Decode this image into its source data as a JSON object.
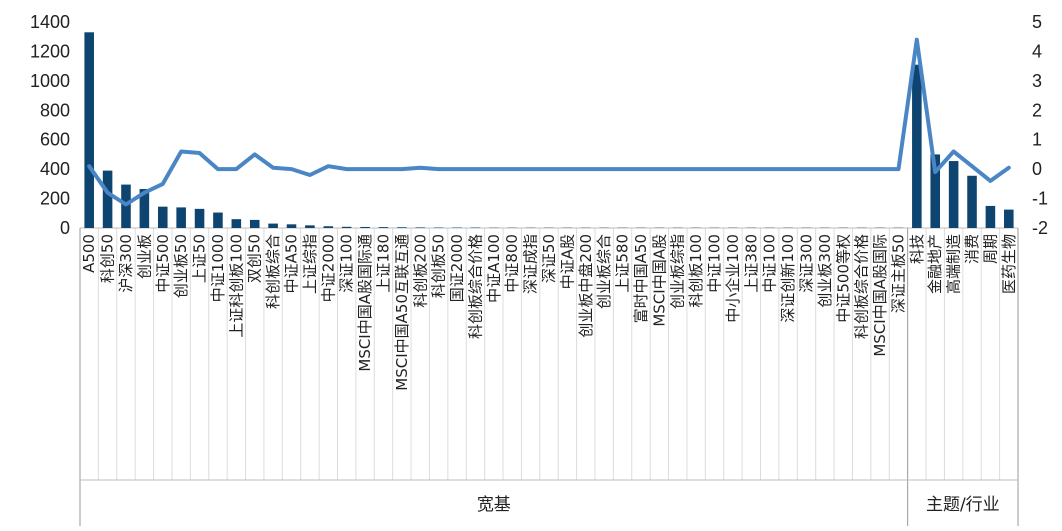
{
  "chart_data": {
    "type": "bar+line",
    "title": "",
    "categories": [
      "A500",
      "科创50",
      "沪深300",
      "创业板",
      "中证500",
      "创业板50",
      "上证50",
      "中证1000",
      "上证科创板100",
      "双创50",
      "科创板综合",
      "中证A50",
      "上证综指",
      "中证2000",
      "深证100",
      "MSCI中国A股国际通",
      "上证180",
      "MSCI中国A50互联互通",
      "科创板200",
      "科创板50",
      "国证2000",
      "科创板综合价格",
      "中证A100",
      "中证800",
      "深证成指",
      "深证50",
      "中证A股",
      "创业板中盘200",
      "创业板综合",
      "上证580",
      "富时中国A50",
      "MSCI中国A股",
      "创业板综指",
      "科创板100",
      "中证100",
      "中小企业100",
      "上证380",
      "中证100 ",
      "深证创新100",
      "深证300",
      "创业板300",
      "中证500等权",
      "科创板综合价格",
      "MSCI中国A股国际",
      "深证主板50",
      "科技",
      "金融地产",
      "高端制造",
      "消费",
      "周期",
      "医药生物"
    ],
    "series": [
      {
        "name": "",
        "type": "bar",
        "axis": "left",
        "color": "#0e4470",
        "values": [
          1330,
          390,
          295,
          265,
          145,
          140,
          130,
          105,
          60,
          55,
          30,
          25,
          18,
          12,
          8,
          7,
          6,
          5,
          4,
          3,
          3,
          3,
          2,
          2,
          2,
          2,
          2,
          2,
          2,
          2,
          2,
          2,
          2,
          2,
          2,
          2,
          2,
          2,
          2,
          2,
          2,
          2,
          2,
          2,
          2,
          1110,
          500,
          455,
          355,
          150,
          125
        ]
      },
      {
        "name": "",
        "type": "line",
        "axis": "right",
        "color": "#4a86c5",
        "values": [
          0.1,
          -0.8,
          -1.2,
          -0.8,
          -0.5,
          0.6,
          0.55,
          0.0,
          0.0,
          0.5,
          0.05,
          0.0,
          -0.2,
          0.1,
          0.0,
          0.0,
          0.0,
          0.0,
          0.05,
          0.0,
          0.0,
          0.0,
          0.0,
          0.0,
          0.0,
          0.0,
          0.0,
          0.0,
          0.0,
          0.0,
          0.0,
          0.0,
          0.0,
          0.0,
          0.0,
          0.0,
          0.0,
          0.0,
          0.0,
          0.0,
          0.0,
          0.0,
          0.0,
          0.0,
          0.0,
          4.4,
          -0.1,
          0.6,
          0.1,
          -0.4,
          0.05
        ]
      }
    ],
    "y_left": {
      "min": 0,
      "max": 1400,
      "ticks": [
        0,
        200,
        400,
        600,
        800,
        1000,
        1200,
        1400
      ]
    },
    "y_right": {
      "min": -2,
      "max": 5,
      "ticks": [
        -2,
        -1,
        0,
        1,
        2,
        3,
        4,
        5
      ]
    },
    "groups": [
      {
        "label": "宽基",
        "from": 0,
        "to": 44
      },
      {
        "label": "主题/行业",
        "from": 45,
        "to": 50
      }
    ],
    "grid": false,
    "legend": "none"
  }
}
